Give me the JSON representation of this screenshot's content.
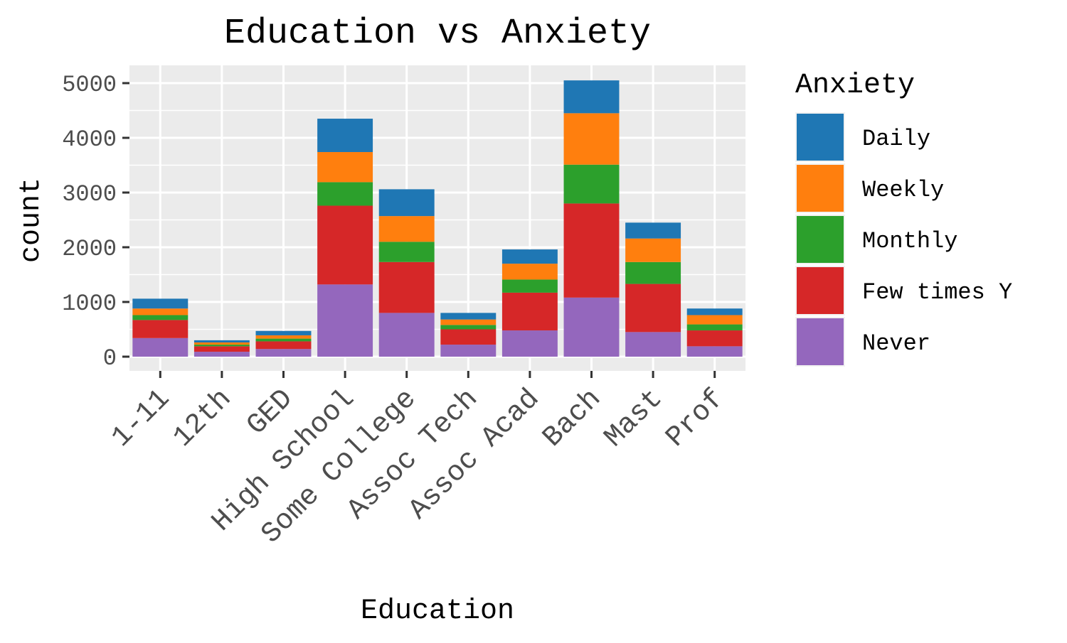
{
  "chart_data": {
    "type": "bar",
    "stacked": true,
    "title": "Education vs Anxiety",
    "xlabel": "Education",
    "ylabel": "count",
    "ylim": [
      0,
      5000
    ],
    "yticks": [
      0,
      1000,
      2000,
      3000,
      4000,
      5000
    ],
    "grid": true,
    "legend": {
      "title": "Anxiety",
      "position": "right"
    },
    "categories": [
      "1-11",
      "12th",
      "GED",
      "High School",
      "Some College",
      "Assoc Tech",
      "Assoc Acad",
      "Bach",
      "Mast",
      "Prof"
    ],
    "series": [
      {
        "name": "Never",
        "color": "#9467bd",
        "values": [
          340,
          90,
          140,
          1320,
          800,
          220,
          480,
          1080,
          450,
          190
        ]
      },
      {
        "name": "Few times Y",
        "color": "#d62728",
        "values": [
          330,
          100,
          140,
          1440,
          930,
          280,
          690,
          1720,
          880,
          290
        ]
      },
      {
        "name": "Monthly",
        "color": "#2ca02c",
        "values": [
          90,
          30,
          50,
          430,
          370,
          80,
          240,
          710,
          400,
          110
        ]
      },
      {
        "name": "Weekly",
        "color": "#ff7f0e",
        "values": [
          120,
          40,
          60,
          550,
          470,
          100,
          290,
          940,
          430,
          170
        ]
      },
      {
        "name": "Daily",
        "color": "#1f77b4",
        "values": [
          180,
          40,
          80,
          610,
          490,
          120,
          260,
          600,
          290,
          120
        ]
      }
    ],
    "legend_order": [
      "Daily",
      "Weekly",
      "Monthly",
      "Few times Y",
      "Never"
    ],
    "panel_background": "#ebebeb",
    "gridline_color": "#ffffff"
  }
}
